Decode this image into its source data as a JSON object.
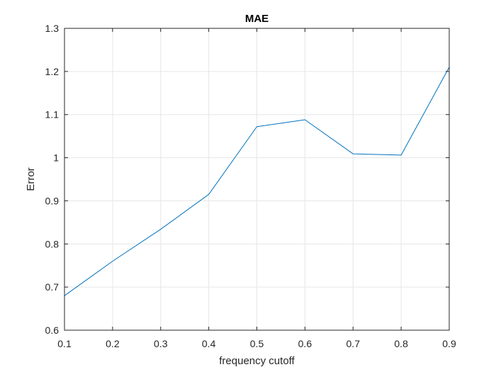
{
  "chart_data": {
    "type": "line",
    "title": "MAE",
    "xlabel": "frequency cutoff",
    "ylabel": "Error",
    "xlim": [
      0.1,
      0.9
    ],
    "ylim": [
      0.6,
      1.3
    ],
    "grid": true,
    "xticks": [
      0.1,
      0.2,
      0.3,
      0.4,
      0.5,
      0.6,
      0.7,
      0.8,
      0.9
    ],
    "xtick_labels": [
      "0.1",
      "0.2",
      "0.3",
      "0.4",
      "0.5",
      "0.6",
      "0.7",
      "0.8",
      "0.9"
    ],
    "yticks": [
      0.6,
      0.7,
      0.8,
      0.9,
      1.0,
      1.1,
      1.2,
      1.3
    ],
    "ytick_labels": [
      "0.6",
      "0.7",
      "0.8",
      "0.9",
      "1",
      "1.1",
      "1.2",
      "1.3"
    ],
    "series": [
      {
        "x": [
          0.1,
          0.2,
          0.3,
          0.4,
          0.5,
          0.6,
          0.7,
          0.8,
          0.9
        ],
        "y": [
          0.68,
          0.76,
          0.834,
          0.915,
          1.072,
          1.088,
          1.009,
          1.006,
          1.21
        ],
        "color": "#0072BD"
      }
    ],
    "colors": {
      "axis": "#262626",
      "grid": "#e6e6e6"
    }
  }
}
